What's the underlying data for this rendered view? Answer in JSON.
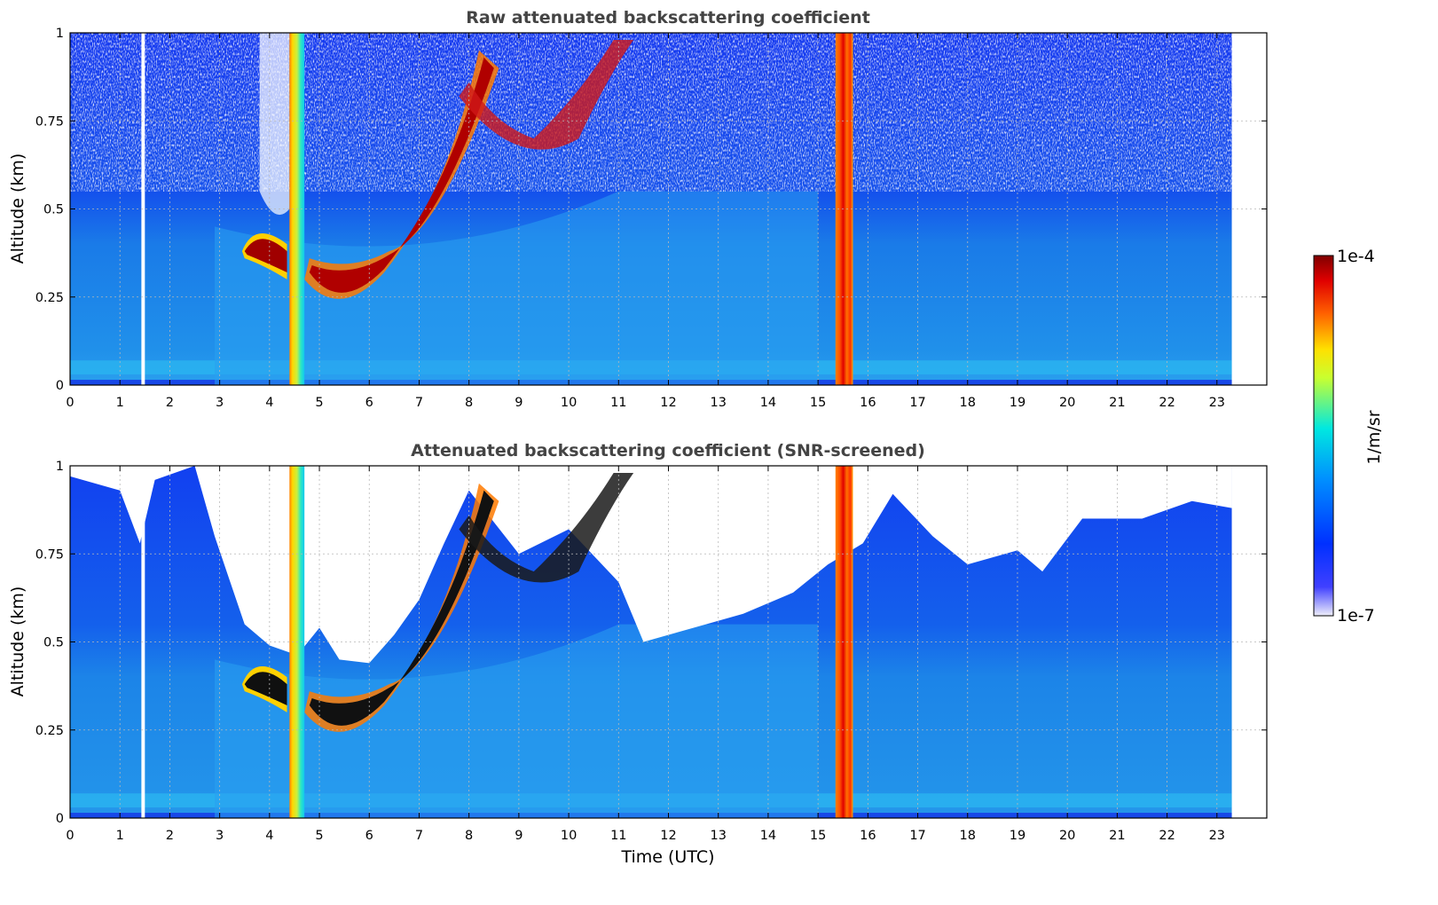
{
  "chart_data": [
    {
      "type": "heatmap",
      "title": "Raw attenuated backscattering coefficient",
      "xlabel": "",
      "ylabel": "Altitude (km)",
      "xlim": [
        0,
        24
      ],
      "ylim": [
        0,
        1
      ],
      "xticks": [
        "0",
        "1",
        "2",
        "3",
        "4",
        "5",
        "6",
        "7",
        "8",
        "9",
        "10",
        "11",
        "12",
        "13",
        "14",
        "15",
        "16",
        "17",
        "18",
        "19",
        "20",
        "21",
        "22",
        "23"
      ],
      "yticks": [
        "0",
        "0.25",
        "0.5",
        "0.75",
        "1"
      ],
      "data_extent_hours": [
        0,
        23.3
      ],
      "grid": true,
      "features": [
        {
          "kind": "data gap",
          "time_h": [
            1.43,
            1.5
          ]
        },
        {
          "kind": "cloud layer",
          "time_h": [
            3.5,
            4.4
          ],
          "alt_km": [
            0.3,
            0.45
          ],
          "level": "1e-4"
        },
        {
          "kind": "rising layer",
          "time_h": [
            4.7,
            11.2
          ],
          "alt_km_start": 0.22,
          "alt_km_end": 0.95,
          "level": "high"
        },
        {
          "kind": "vertical saturation column",
          "time_h": [
            4.4,
            4.7
          ]
        },
        {
          "kind": "vertical saturation column",
          "time_h": [
            15.35,
            15.7
          ]
        }
      ]
    },
    {
      "type": "heatmap",
      "title": "Attenuated backscattering coefficient (SNR-screened)",
      "xlabel": "Time (UTC)",
      "ylabel": "Altitude (km)",
      "xlim": [
        0,
        24
      ],
      "ylim": [
        0,
        1
      ],
      "xticks": [
        "0",
        "1",
        "2",
        "3",
        "4",
        "5",
        "6",
        "7",
        "8",
        "9",
        "10",
        "11",
        "12",
        "13",
        "14",
        "15",
        "16",
        "17",
        "18",
        "19",
        "20",
        "21",
        "22",
        "23"
      ],
      "yticks": [
        "0",
        "0.25",
        "0.5",
        "0.75",
        "1"
      ],
      "data_extent_hours": [
        0,
        23.3
      ],
      "grid": true,
      "screened_top_km": [
        [
          0,
          0.97
        ],
        [
          1.0,
          0.93
        ],
        [
          1.4,
          0.78
        ],
        [
          1.7,
          0.96
        ],
        [
          2.5,
          1.0
        ],
        [
          2.9,
          0.8
        ],
        [
          3.5,
          0.55
        ],
        [
          4.0,
          0.49
        ],
        [
          4.4,
          0.47
        ],
        [
          4.6,
          0.47
        ],
        [
          5.0,
          0.54
        ],
        [
          5.4,
          0.45
        ],
        [
          6.0,
          0.44
        ],
        [
          6.5,
          0.52
        ],
        [
          7.0,
          0.62
        ],
        [
          7.5,
          0.78
        ],
        [
          8.0,
          0.93
        ],
        [
          9.0,
          0.75
        ],
        [
          10.0,
          0.82
        ],
        [
          11.0,
          0.67
        ],
        [
          11.5,
          0.5
        ],
        [
          12.5,
          0.54
        ],
        [
          13.5,
          0.58
        ],
        [
          14.5,
          0.64
        ],
        [
          15.2,
          0.72
        ],
        [
          15.9,
          0.78
        ],
        [
          16.5,
          0.92
        ],
        [
          17.3,
          0.8
        ],
        [
          18.0,
          0.72
        ],
        [
          19.0,
          0.76
        ],
        [
          19.5,
          0.7
        ],
        [
          20.3,
          0.85
        ],
        [
          21.5,
          0.85
        ],
        [
          22.5,
          0.9
        ],
        [
          23.3,
          0.88
        ]
      ]
    }
  ],
  "colorbar": {
    "max_label": "1e-4",
    "min_label": "1e-7",
    "label": "1/m/sr",
    "colormap": "jet",
    "colors": [
      "#e8e8f8",
      "#0000ff",
      "#0080ff",
      "#00e0ff",
      "#ffff00",
      "#ff8000",
      "#ff0000",
      "#800000"
    ]
  }
}
